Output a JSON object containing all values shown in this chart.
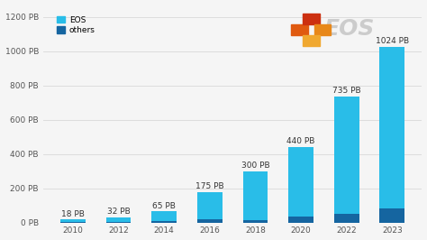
{
  "years": [
    "2010",
    "2012",
    "2014",
    "2016",
    "2018",
    "2020",
    "2022",
    "2023"
  ],
  "total_values": [
    18,
    32,
    65,
    175,
    300,
    440,
    735,
    1024
  ],
  "others_values": [
    3,
    5,
    10,
    18,
    15,
    35,
    50,
    80
  ],
  "eos_color": "#29BDE8",
  "others_color": "#1565A0",
  "background_color": "#f5f5f5",
  "grid_color": "#dddddd",
  "ylabel_ticks": [
    0,
    200,
    400,
    600,
    800,
    1000,
    1200
  ],
  "ylabel_labels": [
    "0 PB",
    "200 PB",
    "400 PB",
    "600 PB",
    "800 PB",
    "1000 PB",
    "1200 PB"
  ],
  "bar_labels": [
    "18 PB",
    "32 PB",
    "65 PB",
    "175 PB",
    "300 PB",
    "440 PB",
    "735 PB",
    "1024 PB"
  ],
  "legend_eos": "EOS",
  "legend_others": "others",
  "label_fontsize": 6.5,
  "tick_fontsize": 6.5,
  "eos_logo_text": "EOS",
  "eos_logo_color": "#cccccc"
}
